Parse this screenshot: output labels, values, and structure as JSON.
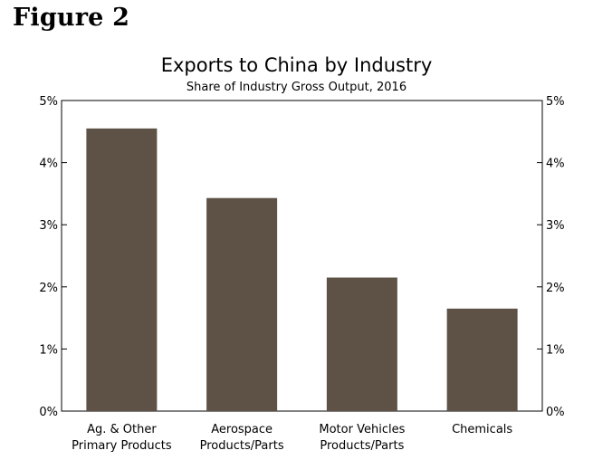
{
  "figure_label": "Figure 2",
  "colors": {
    "bar": "#5e5246",
    "axis": "#000000",
    "background": "#ffffff"
  },
  "chart_data": {
    "type": "bar",
    "title": "Exports to China by Industry",
    "subtitle": "Share of Industry Gross Output, 2016",
    "categories": [
      [
        "Ag. & Other",
        "Primary Products"
      ],
      [
        "Aerospace",
        "Products/Parts"
      ],
      [
        "Motor Vehicles",
        "Products/Parts"
      ],
      [
        "Chemicals"
      ]
    ],
    "values": [
      4.55,
      3.43,
      2.15,
      1.65
    ],
    "unit": "%",
    "ylim": [
      0,
      5
    ],
    "yticks": [
      "0%",
      "1%",
      "2%",
      "3%",
      "4%",
      "5%"
    ],
    "ytick_values": [
      0,
      1,
      2,
      3,
      4,
      5
    ],
    "xlabel": "",
    "ylabel": "",
    "grid": false,
    "legend": "none"
  }
}
